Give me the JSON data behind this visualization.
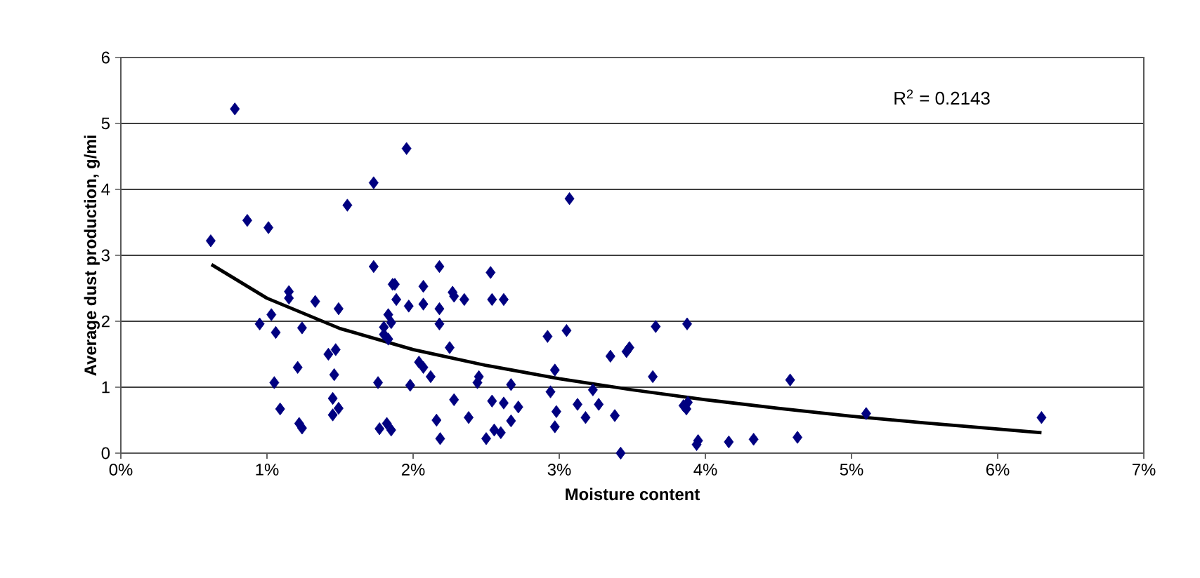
{
  "chart_data": {
    "type": "scatter",
    "xlabel": "Moisture content",
    "ylabel": "Average dust production, g/mi",
    "annotations": [
      "R$^{2}$ = 0.2143"
    ],
    "xlim": [
      0,
      7
    ],
    "ylim": [
      0,
      6
    ],
    "xticks": [
      {
        "value": 0,
        "label": "0%"
      },
      {
        "value": 1,
        "label": "1%"
      },
      {
        "value": 2,
        "label": "2%"
      },
      {
        "value": 3,
        "label": "3%"
      },
      {
        "value": 4,
        "label": "4%"
      },
      {
        "value": 5,
        "label": "5%"
      },
      {
        "value": 6,
        "label": "6%"
      },
      {
        "value": 7,
        "label": "7%"
      }
    ],
    "yticks": [
      0,
      1,
      2,
      3,
      4,
      5,
      6
    ],
    "grid": "y",
    "series": [
      {
        "marker": "diamond",
        "color": "#000080",
        "x": [
          0.78,
          1.73,
          1.55,
          0.865,
          1.01,
          0.615,
          1.73,
          1.15,
          1.15,
          1.33,
          1.49,
          1.86,
          1.03,
          0.95,
          1.06,
          1.24,
          1.83,
          1.8,
          1.8,
          1.42,
          1.47,
          1.21,
          1.46,
          1.05,
          1.76,
          1.45,
          1.49,
          1.45,
          1.09,
          1.22,
          1.24,
          1.77,
          1.82,
          1.85,
          1.955,
          3.07,
          2.18,
          2.53,
          1.875,
          2.07,
          1.885,
          1.97,
          2.07,
          2.18,
          2.27,
          2.28,
          2.35,
          2.54,
          2.62,
          1.85,
          2.18,
          1.83,
          2.25,
          2.92,
          3.05,
          3.66,
          3.48,
          3.46,
          3.35,
          2.04,
          2.07,
          2.12,
          2.45,
          2.44,
          2.67,
          2.97,
          3.64,
          1.98,
          2.94,
          3.23,
          2.28,
          2.54,
          2.62,
          2.72,
          2.98,
          3.125,
          3.27,
          3.18,
          3.38,
          2.38,
          2.67,
          2.16,
          2.97,
          2.555,
          2.6,
          2.5,
          2.185,
          3.42,
          3.875,
          4.58,
          3.85,
          3.88,
          3.87,
          5.1,
          3.95,
          3.94,
          4.16,
          4.33,
          4.63,
          6.3
        ],
        "values": [
          5.22,
          4.1,
          3.76,
          3.53,
          3.42,
          3.22,
          2.83,
          2.45,
          2.35,
          2.3,
          2.19,
          2.56,
          2.1,
          1.96,
          1.83,
          1.9,
          2.1,
          1.91,
          1.8,
          1.5,
          1.57,
          1.3,
          1.19,
          1.07,
          1.07,
          0.83,
          0.68,
          0.58,
          0.67,
          0.45,
          0.38,
          0.37,
          0.45,
          0.35,
          4.62,
          3.86,
          2.83,
          2.74,
          2.56,
          2.53,
          2.33,
          2.23,
          2.26,
          2.19,
          2.44,
          2.38,
          2.33,
          2.33,
          2.33,
          1.98,
          1.96,
          1.73,
          1.6,
          1.77,
          1.86,
          1.92,
          1.6,
          1.54,
          1.47,
          1.38,
          1.3,
          1.16,
          1.16,
          1.07,
          1.04,
          1.26,
          1.16,
          1.03,
          0.93,
          0.96,
          0.81,
          0.79,
          0.76,
          0.7,
          0.63,
          0.74,
          0.74,
          0.54,
          0.57,
          0.54,
          0.49,
          0.5,
          0.4,
          0.35,
          0.31,
          0.22,
          0.22,
          0.0,
          1.96,
          1.11,
          0.72,
          0.77,
          0.67,
          0.6,
          0.19,
          0.13,
          0.17,
          0.21,
          0.24,
          0.54
        ]
      },
      {
        "type": "line",
        "marker": "none",
        "color": "#000000",
        "x": [
          0.62,
          1,
          1.5,
          2,
          2.5,
          3,
          3.5,
          4,
          4.5,
          5,
          5.5,
          6.3
        ],
        "values": [
          2.86,
          2.35,
          1.89,
          1.57,
          1.33,
          1.13,
          0.96,
          0.81,
          0.68,
          0.56,
          0.46,
          0.31
        ]
      }
    ]
  }
}
